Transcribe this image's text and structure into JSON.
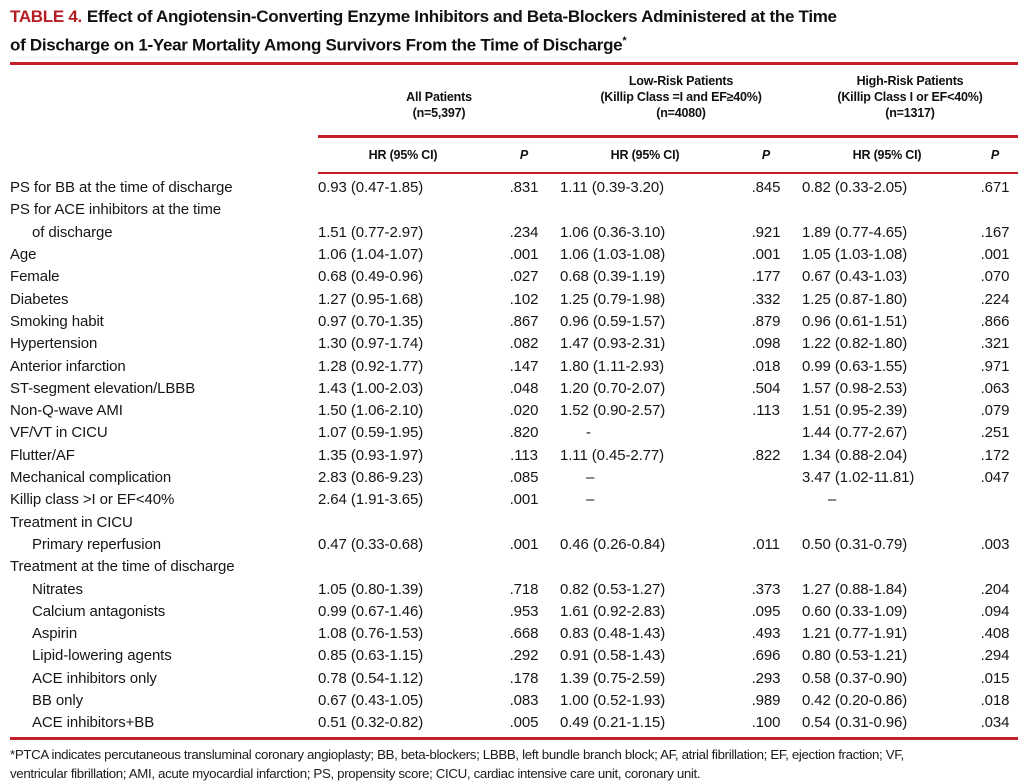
{
  "title": {
    "label": "TABLE 4.",
    "line1": "Effect of Angiotensin-Converting Enzyme Inhibitors and Beta-Blockers Administered at the Time",
    "line2": "of Discharge on 1-Year Mortality Among Survivors From the Time of Discharge",
    "asterisk": "*"
  },
  "colors": {
    "accent_red": "#c41e26",
    "title_red": "#b51d23"
  },
  "header": {
    "groups": [
      {
        "lines": [
          "",
          "All Patients",
          "(n=5,397)"
        ]
      },
      {
        "lines": [
          "Low-Risk Patients",
          "(Killip Class =I and EF≥40%)",
          "(n=4080)"
        ]
      },
      {
        "lines": [
          "High-Risk Patients",
          "(Killip Class I or EF<40%)",
          "(n=1317)"
        ]
      }
    ],
    "sub": [
      "HR (95% CI)",
      "P",
      "HR (95% CI)",
      "P",
      "HR (95% CI)",
      "P"
    ]
  },
  "rows": [
    {
      "label": "PS for BB at the time of discharge",
      "indent": 0,
      "cells": [
        "0.93 (0.47-1.85)",
        ".831",
        "1.11 (0.39-3.20)",
        ".845",
        "0.82 (0.33-2.05)",
        ".671"
      ]
    },
    {
      "label": "PS for ACE inhibitors at the time",
      "indent": 0,
      "cells": [
        "",
        "",
        "",
        "",
        "",
        ""
      ]
    },
    {
      "label": "of discharge",
      "indent": 1,
      "cells": [
        "1.51 (0.77-2.97)",
        ".234",
        "1.06 (0.36-3.10)",
        ".921",
        "1.89 (0.77-4.65)",
        ".167"
      ]
    },
    {
      "label": "Age",
      "indent": 0,
      "cells": [
        "1.06 (1.04-1.07)",
        ".001",
        "1.06 (1.03-1.08)",
        ".001",
        "1.05 (1.03-1.08)",
        ".001"
      ]
    },
    {
      "label": "Female",
      "indent": 0,
      "cells": [
        "0.68 (0.49-0.96)",
        ".027",
        "0.68 (0.39-1.19)",
        ".177",
        "0.67 (0.43-1.03)",
        ".070"
      ]
    },
    {
      "label": "Diabetes",
      "indent": 0,
      "cells": [
        "1.27 (0.95-1.68)",
        ".102",
        "1.25 (0.79-1.98)",
        ".332",
        "1.25 (0.87-1.80)",
        ".224"
      ]
    },
    {
      "label": "Smoking habit",
      "indent": 0,
      "cells": [
        "0.97 (0.70-1.35)",
        ".867",
        "0.96 (0.59-1.57)",
        ".879",
        "0.96 (0.61-1.51)",
        ".866"
      ]
    },
    {
      "label": "Hypertension",
      "indent": 0,
      "cells": [
        "1.30 (0.97-1.74)",
        ".082",
        "1.47 (0.93-2.31)",
        ".098",
        "1.22 (0.82-1.80)",
        ".321"
      ]
    },
    {
      "label": "Anterior infarction",
      "indent": 0,
      "cells": [
        "1.28 (0.92-1.77)",
        ".147",
        "1.80 (1.11-2.93)",
        ".018",
        "0.99 (0.63-1.55)",
        ".971"
      ]
    },
    {
      "label": "ST-segment elevation/LBBB",
      "indent": 0,
      "cells": [
        "1.43 (1.00-2.03)",
        ".048",
        "1.20 (0.70-2.07)",
        ".504",
        "1.57 (0.98-2.53)",
        ".063"
      ]
    },
    {
      "label": "Non-Q-wave AMI",
      "indent": 0,
      "cells": [
        "1.50 (1.06-2.10)",
        ".020",
        "1.52 (0.90-2.57)",
        ".113",
        "1.51 (0.95-2.39)",
        ".079"
      ]
    },
    {
      "label": "VF/VT in CICU",
      "indent": 0,
      "cells": [
        "1.07 (0.59-1.95)",
        ".820",
        "-",
        "",
        "1.44 (0.77-2.67)",
        ".251"
      ]
    },
    {
      "label": "Flutter/AF",
      "indent": 0,
      "cells": [
        "1.35 (0.93-1.97)",
        ".113",
        "1.11 (0.45-2.77)",
        ".822",
        "1.34 (0.88-2.04)",
        ".172"
      ]
    },
    {
      "label": "Mechanical complication",
      "indent": 0,
      "cells": [
        "2.83 (0.86-9.23)",
        ".085",
        "–",
        "",
        "3.47 (1.02-11.81)",
        ".047"
      ]
    },
    {
      "label": "Killip class >I or EF<40%",
      "indent": 0,
      "cells": [
        "2.64 (1.91-3.65)",
        ".001",
        "–",
        "",
        "–",
        ""
      ]
    },
    {
      "label": "Treatment in CICU",
      "indent": 0,
      "cells": [
        "",
        "",
        "",
        "",
        "",
        ""
      ]
    },
    {
      "label": "Primary reperfusion",
      "indent": 1,
      "cells": [
        "0.47 (0.33-0.68)",
        ".001",
        "0.46 (0.26-0.84)",
        ".011",
        "0.50 (0.31-0.79)",
        ".003"
      ]
    },
    {
      "label": "Treatment at the time of discharge",
      "indent": 0,
      "cells": [
        "",
        "",
        "",
        "",
        "",
        ""
      ]
    },
    {
      "label": "Nitrates",
      "indent": 1,
      "cells": [
        "1.05 (0.80-1.39)",
        ".718",
        "0.82 (0.53-1.27)",
        ".373",
        "1.27 (0.88-1.84)",
        ".204"
      ]
    },
    {
      "label": "Calcium antagonists",
      "indent": 1,
      "cells": [
        "0.99 (0.67-1.46)",
        ".953",
        "1.61 (0.92-2.83)",
        ".095",
        "0.60 (0.33-1.09)",
        ".094"
      ]
    },
    {
      "label": "Aspirin",
      "indent": 1,
      "cells": [
        "1.08 (0.76-1.53)",
        ".668",
        "0.83 (0.48-1.43)",
        ".493",
        "1.21 (0.77-1.91)",
        ".408"
      ]
    },
    {
      "label": "Lipid-lowering agents",
      "indent": 1,
      "cells": [
        "0.85 (0.63-1.15)",
        ".292",
        "0.91 (0.58-1.43)",
        ".696",
        "0.80 (0.53-1.21)",
        ".294"
      ]
    },
    {
      "label": "ACE inhibitors only",
      "indent": 1,
      "cells": [
        "0.78 (0.54-1.12)",
        ".178",
        "1.39 (0.75-2.59)",
        ".293",
        "0.58 (0.37-0.90)",
        ".015"
      ]
    },
    {
      "label": "BB only",
      "indent": 1,
      "cells": [
        "0.67 (0.43-1.05)",
        ".083",
        "1.00 (0.52-1.93)",
        ".989",
        "0.42 (0.20-0.86)",
        ".018"
      ]
    },
    {
      "label": "ACE inhibitors+BB",
      "indent": 1,
      "cells": [
        "0.51 (0.32-0.82)",
        ".005",
        "0.49 (0.21-1.15)",
        ".100",
        "0.54 (0.31-0.96)",
        ".034"
      ]
    }
  ],
  "footnote": {
    "line1": "*PTCA indicates percutaneous transluminal coronary angioplasty; BB, beta-blockers; LBBB, left bundle branch block; AF, atrial fibrillation; EF, ejection fraction; VF,",
    "line2": "ventricular fibrillation; AMI, acute myocardial infarction; PS, propensity score; CICU, cardiac intensive care unit, coronary unit."
  }
}
